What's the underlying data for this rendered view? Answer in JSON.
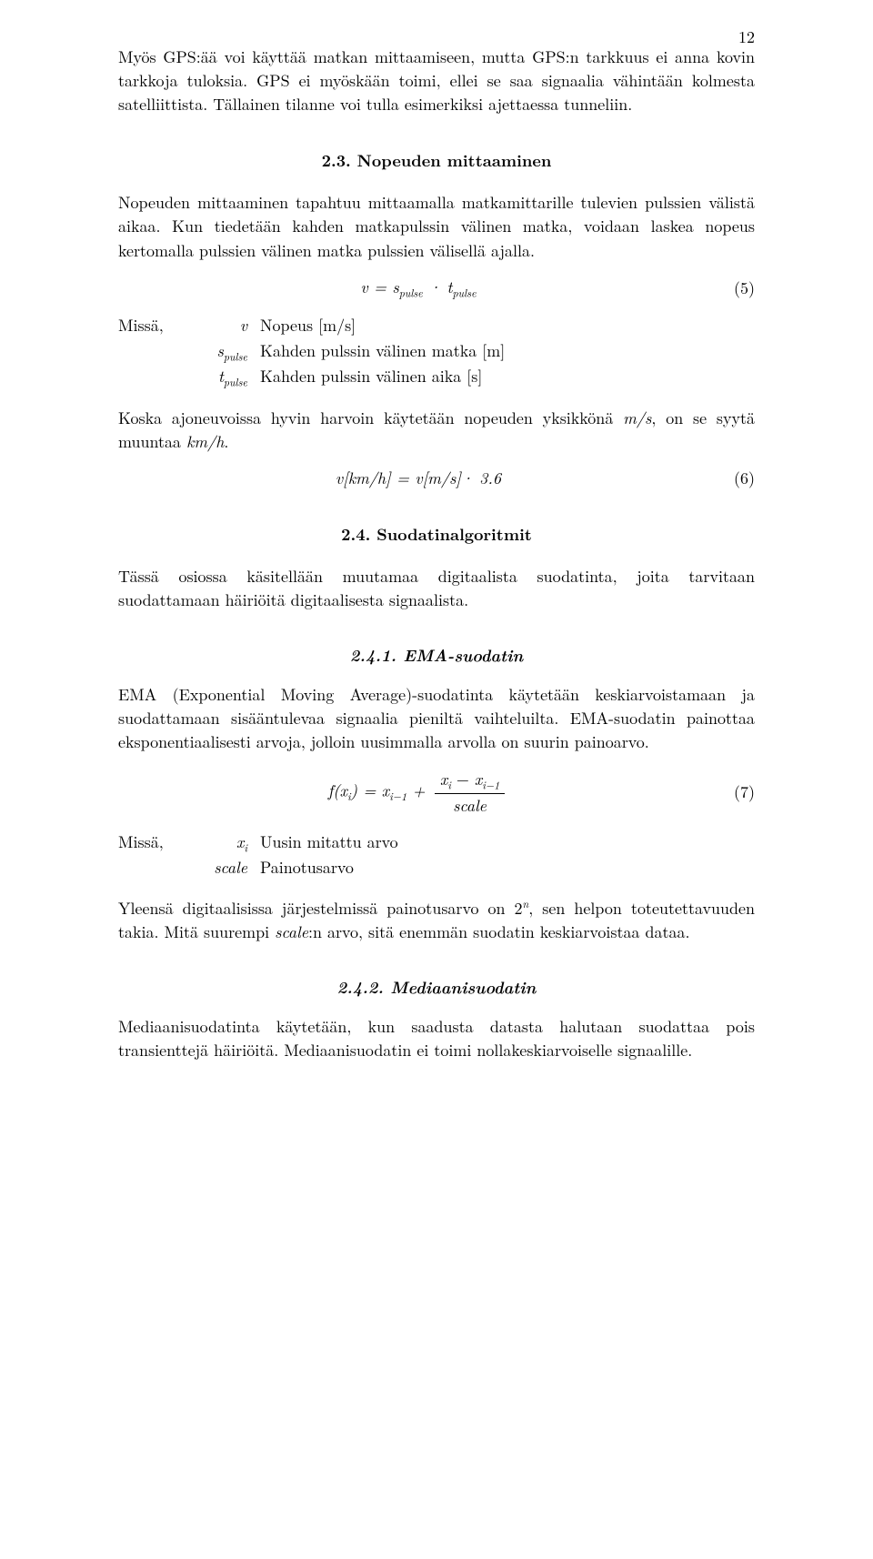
{
  "page_number": "12",
  "para1": "Myös GPS:ää voi käyttää matkan mittaamiseen, mutta GPS:n tarkkuus ei anna kovin tarkkoja tuloksia. GPS ei myöskään toimi, ellei se saa signaalia vähintään kolmesta satelliittista. Tällainen tilanne voi tulla esimerkiksi ajettaessa tunneliin.",
  "sec23_title": "2.3. Nopeuden mittaaminen",
  "sec23_p1": "Nopeuden mittaaminen tapahtuu mittaamalla matkamittarille tulevien pulssien välistä aikaa. Kun tiedetään kahden matkapulssin välinen matka, voidaan laskea nopeus kertomalla pulssien välinen matka pulssien välisellä ajalla.",
  "eq5": {
    "lhs_var": "v",
    "eq": "=",
    "t1_var": "s",
    "t1_sub": "pulse",
    "dot": "·",
    "t2_var": "t",
    "t2_sub": "pulse",
    "num": "(5)"
  },
  "where5": {
    "label": "Missä,",
    "rows": [
      {
        "sym": "v",
        "sub": "",
        "desc": "Nopeus [m/s]"
      },
      {
        "sym": "s",
        "sub": "pulse",
        "desc": "Kahden pulssin välinen matka [m]"
      },
      {
        "sym": "t",
        "sub": "pulse",
        "desc": "Kahden pulssin välinen aika [s]"
      }
    ]
  },
  "sec23_p2_a": "Koska ajoneuvoissa hyvin harvoin käytetään nopeuden yksikkönä ",
  "sec23_p2_unit1": "m/s",
  "sec23_p2_b": ", on se syytä muuntaa ",
  "sec23_p2_unit2": "km/h",
  "sec23_p2_c": ".",
  "eq6": {
    "lhs": "v[km/h] = v[m/s]· 3.6",
    "num": "(6)"
  },
  "sec24_title": "2.4. Suodatinalgoritmit",
  "sec24_p1": "Tässä osiossa käsitellään muutamaa digitaalista suodatinta, joita tarvitaan suodattamaan häiriöitä digitaalisesta signaalista.",
  "sec241_title": "2.4.1. EMA-suodatin",
  "sec241_p1": "EMA (Exponential Moving Average)-suodatinta käytetään keskiarvoistamaan ja suodattamaan sisääntulevaa signaalia pieniltä vaihteluilta. EMA-suodatin painottaa eksponentiaalisesti arvoja, jolloin uusimmalla arvolla on suurin painoarvo.",
  "eq7": {
    "f": "f",
    "lp": "(",
    "x": "x",
    "i": "i",
    "rp": ")",
    "eq": " = ",
    "xi1_x": "x",
    "xi1_i": "i−1",
    "plus": " + ",
    "num_a": "x",
    "num_ai": "i",
    "num_minus": " − ",
    "num_b": "x",
    "num_bi": "i−1",
    "den": "scale",
    "number": "(7)"
  },
  "where7": {
    "label": "Missä,",
    "rows": [
      {
        "sym": "x",
        "sub": "i",
        "desc": "Uusin mitattu arvo"
      },
      {
        "sym": "scale",
        "sub": "",
        "desc": "Painotusarvo"
      }
    ]
  },
  "sec241_p2_a": "Yleensä digitaalisissa järjestelmissä painotusarvo on 2",
  "sec241_p2_sup": "n",
  "sec241_p2_b": ", sen helpon toteutettavuuden takia. Mitä suurempi ",
  "sec241_p2_scale": "scale",
  "sec241_p2_c": ":n arvo, sitä enemmän suodatin keskiarvoistaa dataa.",
  "sec242_title": "2.4.2. Mediaanisuodatin",
  "sec242_p1": "Mediaanisuodatinta käytetään, kun saadusta datasta halutaan suodattaa pois transienttejä häiriöitä. Mediaanisuodatin ei toimi nollakeskiarvoiselle signaalille."
}
